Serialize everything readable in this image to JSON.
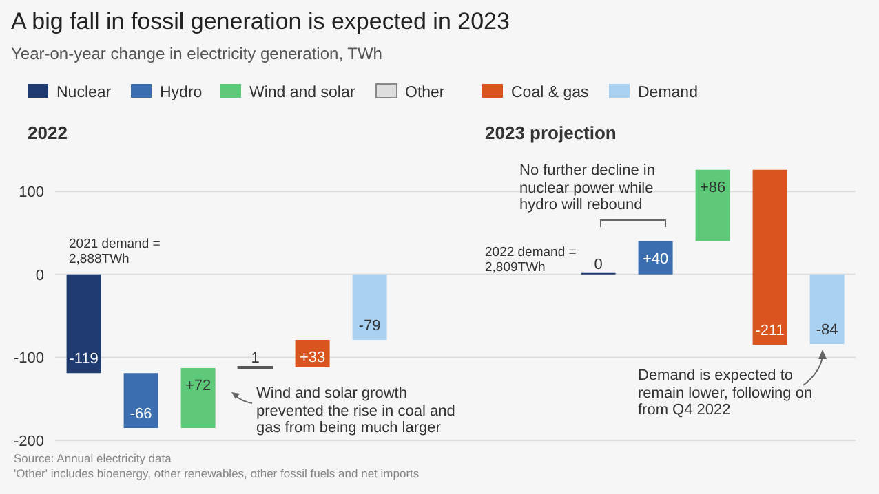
{
  "chart_data": {
    "type": "bar",
    "title": "A big fall in fossil generation is expected in 2023",
    "subtitle": "Year-on-year change in electricity generation, TWh",
    "legend": "top left",
    "grid": "y",
    "tick_labels": "y",
    "ylim": [
      -200,
      130
    ],
    "yticks": [
      -200,
      -100,
      0,
      100
    ],
    "categories": [
      null,
      null,
      null,
      null,
      null,
      null,
      null,
      null,
      null,
      null,
      null,
      null,
      null,
      null
    ],
    "series": [
      {
        "name": "Nuclear",
        "color": "#1f3a6e",
        "values": [
          -119,
          null,
          null,
          null,
          null,
          null,
          null,
          null,
          null,
          0,
          null,
          null,
          null,
          null
        ],
        "base": [
          0,
          null,
          null,
          null,
          null,
          null,
          null,
          null,
          null,
          0,
          null,
          null,
          null,
          null
        ]
      },
      {
        "name": "Hydro",
        "color": "#3a6eb0",
        "values": [
          null,
          -66,
          null,
          null,
          null,
          null,
          null,
          null,
          null,
          null,
          40,
          null,
          null,
          null
        ],
        "base": [
          null,
          -119,
          null,
          null,
          null,
          null,
          null,
          null,
          null,
          null,
          0,
          null,
          null,
          null
        ]
      },
      {
        "name": "Wind and solar",
        "color": "#5fc97a",
        "values": [
          null,
          null,
          72,
          null,
          null,
          null,
          null,
          null,
          null,
          null,
          null,
          86,
          null,
          null
        ],
        "base": [
          null,
          null,
          -185,
          null,
          null,
          null,
          null,
          null,
          null,
          null,
          null,
          40,
          null,
          null
        ]
      },
      {
        "name": "Other",
        "color": "#dedede",
        "values": [
          null,
          null,
          null,
          1,
          null,
          null,
          null,
          null,
          null,
          null,
          null,
          null,
          null,
          null
        ],
        "base": [
          null,
          null,
          null,
          -113,
          null,
          null,
          null,
          null,
          null,
          null,
          null,
          null,
          null,
          null
        ]
      },
      {
        "name": "Coal & gas",
        "color": "#d9541e",
        "values": [
          null,
          null,
          null,
          null,
          33,
          null,
          null,
          null,
          null,
          null,
          null,
          null,
          -211,
          null
        ],
        "base": [
          null,
          null,
          null,
          null,
          -112,
          null,
          null,
          null,
          null,
          null,
          null,
          null,
          126,
          null
        ]
      },
      {
        "name": "Demand",
        "color": "#a9d1f2",
        "values": [
          null,
          null,
          null,
          null,
          null,
          -79,
          null,
          null,
          null,
          null,
          null,
          null,
          null,
          -84
        ],
        "base": [
          null,
          null,
          null,
          null,
          null,
          0,
          null,
          null,
          null,
          null,
          null,
          null,
          null,
          0
        ]
      }
    ],
    "value_labels": [
      "-119",
      "-66",
      "+72",
      "1",
      "+33",
      "-79",
      null,
      null,
      null,
      "0",
      "+40",
      "+86",
      "-211",
      "-84"
    ],
    "annotations": [
      "2022",
      "2023 projection",
      "2021 demand = 2,888TWh",
      "Wind and solar growth prevented the rise in coal and gas from being much larger",
      "2022 demand = 2,809TWh",
      "No further decline in nuclear power while hydro will rebound",
      "Demand is expected to remain lower, following on from Q4 2022",
      "Source: Annual electricity data",
      "'Other' includes bioenergy, other renewables, other fossil fuels and net imports"
    ]
  }
}
